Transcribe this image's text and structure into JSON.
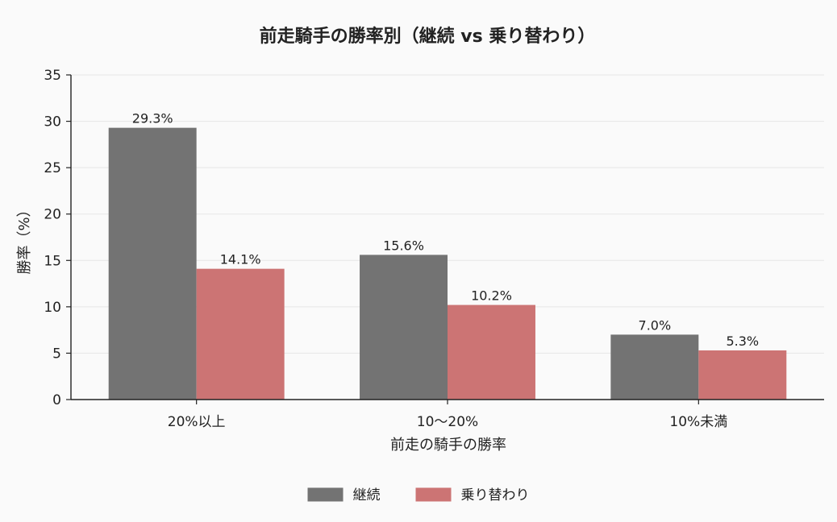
{
  "chart_data": {
    "type": "bar",
    "title": "前走騎手の勝率別（継続 vs 乗り替わり）",
    "xlabel": "前走の騎手の勝率",
    "ylabel": "勝率（%）",
    "categories": [
      "20%以上",
      "10〜20%",
      "10%未満"
    ],
    "series": [
      {
        "name": "継続",
        "values": [
          29.3,
          15.6,
          7.0
        ],
        "labels": [
          "29.3%",
          "15.6%",
          "7.0%"
        ],
        "color": "#737373"
      },
      {
        "name": "乗り替わり",
        "values": [
          14.1,
          10.2,
          5.3
        ],
        "labels": [
          "14.1%",
          "10.2%",
          "5.3%"
        ],
        "color": "#cc7474"
      }
    ],
    "ylim": [
      0,
      35
    ],
    "yticks": [
      0,
      5,
      10,
      15,
      20,
      25,
      30,
      35
    ],
    "grid": true,
    "legend_position": "bottom-center",
    "colors": {
      "background": "#fafafa",
      "grid": "#e6e6e6",
      "axis": "#222222"
    }
  }
}
